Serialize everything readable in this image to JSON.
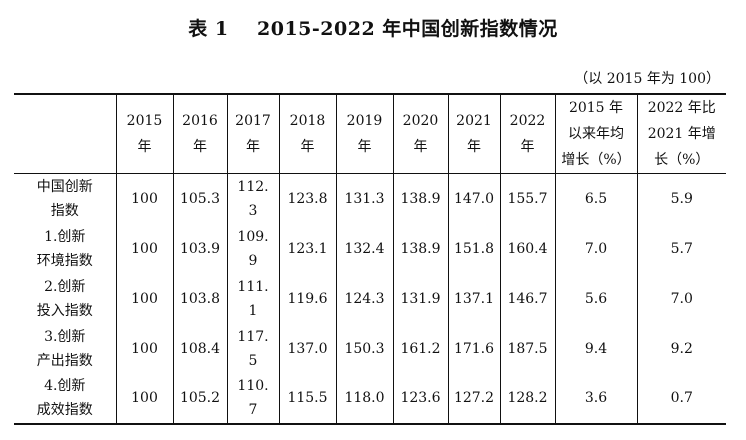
{
  "title": "表 1    2015-2022 年中国创新指数情况",
  "unit_note": "（以 2015 年为 100）",
  "table": {
    "headers": [
      "",
      "2015\n年",
      "2016\n年",
      "2017\n年",
      "2018\n年",
      "2019\n年",
      "2020\n年",
      "2021\n年",
      "2022\n年",
      "2015 年\n以来年均\n增长（%）",
      "2022 年比\n2021 年增\n长（%）"
    ],
    "rows": [
      {
        "name": "中国创新\n指数",
        "cells": [
          "100",
          "105.3",
          "112.3",
          "123.8",
          "131.3",
          "138.9",
          "147.0",
          "155.7",
          "6.5",
          "5.9"
        ]
      },
      {
        "name": "1.创新\n环境指数",
        "cells": [
          "100",
          "103.9",
          "109.9",
          "123.1",
          "132.4",
          "138.9",
          "151.8",
          "160.4",
          "7.0",
          "5.7"
        ]
      },
      {
        "name": "2.创新\n投入指数",
        "cells": [
          "100",
          "103.8",
          "111.1",
          "119.6",
          "124.3",
          "131.9",
          "137.1",
          "146.7",
          "5.6",
          "7.0"
        ]
      },
      {
        "name": "3.创新\n产出指数",
        "cells": [
          "100",
          "108.4",
          "117.5",
          "137.0",
          "150.3",
          "161.2",
          "171.6",
          "187.5",
          "9.4",
          "9.2"
        ]
      },
      {
        "name": "4.创新\n成效指数",
        "cells": [
          "100",
          "105.2",
          "110.7",
          "115.5",
          "118.0",
          "123.6",
          "127.2",
          "128.2",
          "3.6",
          "0.7"
        ]
      }
    ]
  }
}
